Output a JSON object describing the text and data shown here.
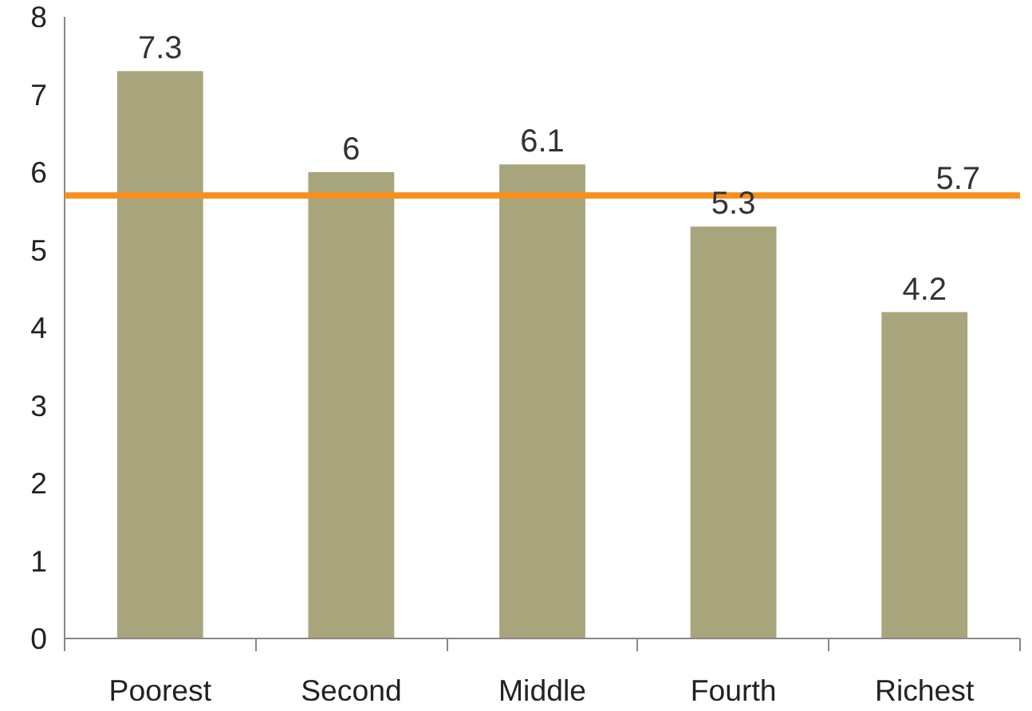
{
  "chart_data": {
    "type": "bar",
    "categories": [
      "Poorest",
      "Second",
      "Middle",
      "Fourth",
      "Richest"
    ],
    "values": [
      7.3,
      6,
      6.1,
      5.3,
      4.2
    ],
    "color": "#a8a57d",
    "data_labels": true,
    "ylim": [
      0,
      8
    ],
    "yticks": [
      0,
      1,
      2,
      3,
      4,
      5,
      6,
      7,
      8
    ],
    "grid": false,
    "ref_lines": [
      {
        "axis": "y",
        "value": 5.7,
        "label": "5.7",
        "color": "#f7901e",
        "line_style": "solid"
      }
    ]
  }
}
